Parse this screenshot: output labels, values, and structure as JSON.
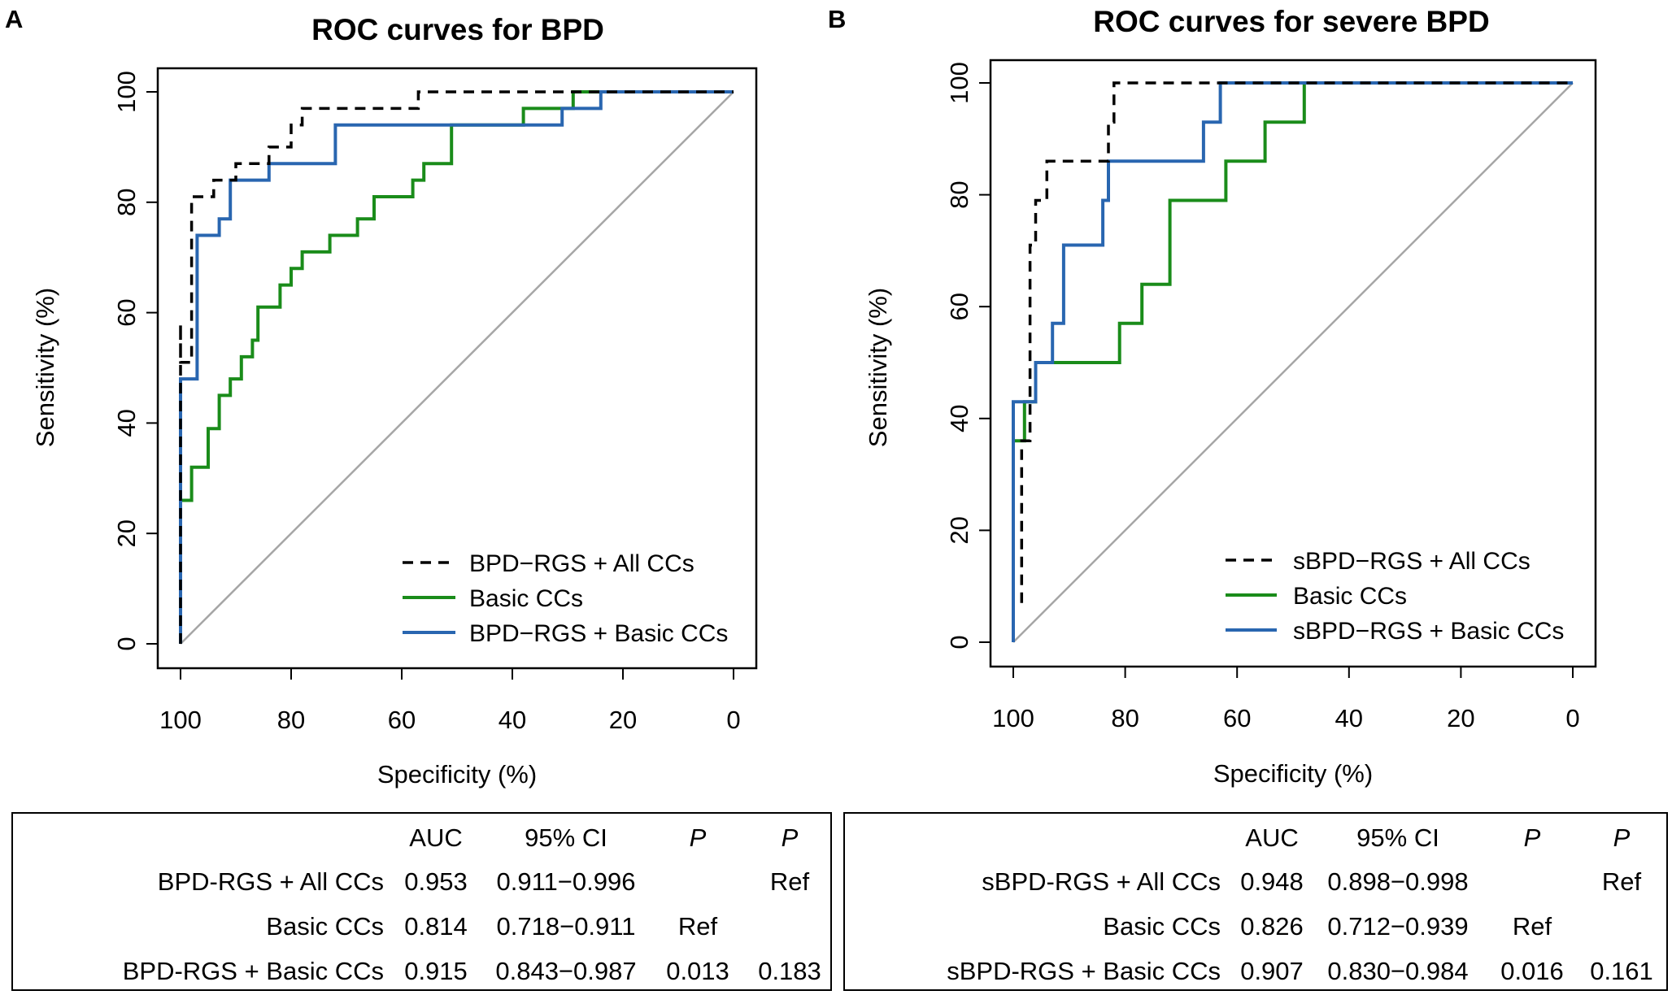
{
  "panels": [
    {
      "letter": "A",
      "chart_data": {
        "type": "line",
        "title": "ROC curves for BPD",
        "xlabel": "Specificity (%)",
        "ylabel": "Sensitivity (%)",
        "xlim": [
          100,
          0
        ],
        "ylim": [
          0,
          100
        ],
        "xticks": [
          "100",
          "80",
          "60",
          "40",
          "20",
          "0"
        ],
        "yticks": [
          "0",
          "20",
          "40",
          "60",
          "80",
          "100"
        ],
        "legend_position": "bottom-right",
        "series": [
          {
            "name": "BPD−RGS + All CCs",
            "color": "#000000",
            "style": "dashed",
            "points": [
              [
                100,
                0
              ],
              [
                100,
                51
              ],
              [
                100,
                58
              ],
              [
                100,
                51
              ],
              [
                98,
                51
              ],
              [
                98,
                75
              ],
              [
                98,
                81
              ],
              [
                94,
                81
              ],
              [
                94,
                84
              ],
              [
                90,
                84
              ],
              [
                90,
                87
              ],
              [
                84,
                87
              ],
              [
                84,
                90
              ],
              [
                80,
                90
              ],
              [
                80,
                94
              ],
              [
                78,
                94
              ],
              [
                78,
                97
              ],
              [
                57,
                97
              ],
              [
                57,
                100
              ],
              [
                0,
                100
              ]
            ]
          },
          {
            "name": "Basic CCs",
            "color": "#1a8c1a",
            "style": "solid",
            "points": [
              [
                100,
                0
              ],
              [
                100,
                26
              ],
              [
                98,
                26
              ],
              [
                98,
                32
              ],
              [
                95,
                32
              ],
              [
                95,
                39
              ],
              [
                93,
                39
              ],
              [
                93,
                45
              ],
              [
                91,
                45
              ],
              [
                91,
                48
              ],
              [
                89,
                48
              ],
              [
                89,
                52
              ],
              [
                87,
                52
              ],
              [
                87,
                55
              ],
              [
                86,
                55
              ],
              [
                86,
                61
              ],
              [
                82,
                61
              ],
              [
                82,
                65
              ],
              [
                80,
                65
              ],
              [
                80,
                68
              ],
              [
                78,
                68
              ],
              [
                78,
                71
              ],
              [
                73,
                71
              ],
              [
                73,
                74
              ],
              [
                68,
                74
              ],
              [
                68,
                77
              ],
              [
                65,
                77
              ],
              [
                65,
                81
              ],
              [
                58,
                81
              ],
              [
                58,
                84
              ],
              [
                56,
                84
              ],
              [
                56,
                87
              ],
              [
                51,
                87
              ],
              [
                51,
                94
              ],
              [
                38,
                94
              ],
              [
                38,
                97
              ],
              [
                29,
                97
              ],
              [
                29,
                100
              ],
              [
                0,
                100
              ]
            ]
          },
          {
            "name": "BPD−RGS + Basic CCs",
            "color": "#2966b0",
            "style": "solid",
            "points": [
              [
                100,
                0
              ],
              [
                100,
                48
              ],
              [
                97,
                48
              ],
              [
                97,
                74
              ],
              [
                93,
                74
              ],
              [
                93,
                77
              ],
              [
                91,
                77
              ],
              [
                91,
                84
              ],
              [
                84,
                84
              ],
              [
                84,
                87
              ],
              [
                72,
                87
              ],
              [
                72,
                94
              ],
              [
                31,
                94
              ],
              [
                31,
                97
              ],
              [
                24,
                97
              ],
              [
                24,
                100
              ],
              [
                0,
                100
              ]
            ]
          }
        ]
      },
      "table": {
        "headers": {
          "auc": "AUC",
          "ci": "95% CI",
          "p1": "P",
          "p2": "P"
        },
        "rows": [
          {
            "name": "BPD-RGS + All CCs",
            "auc": "0.953",
            "ci": "0.911−0.996",
            "p1": "",
            "p2": "Ref"
          },
          {
            "name": "Basic CCs",
            "auc": "0.814",
            "ci": "0.718−0.911",
            "p1": "Ref",
            "p2": ""
          },
          {
            "name": "BPD-RGS + Basic CCs",
            "auc": "0.915",
            "ci": "0.843−0.987",
            "p1": "0.013",
            "p2": "0.183"
          }
        ]
      }
    },
    {
      "letter": "B",
      "chart_data": {
        "type": "line",
        "title": "ROC curves for severe BPD",
        "xlabel": "Specificity (%)",
        "ylabel": "Sensitivity (%)",
        "xlim": [
          100,
          0
        ],
        "ylim": [
          0,
          100
        ],
        "xticks": [
          "100",
          "80",
          "60",
          "40",
          "20",
          "0"
        ],
        "yticks": [
          "0",
          "20",
          "40",
          "60",
          "80",
          "100"
        ],
        "legend_position": "bottom-right",
        "series": [
          {
            "name": "sBPD−RGS + All CCs",
            "color": "#000000",
            "style": "dashed",
            "points": [
              [
                98.5,
                7
              ],
              [
                98.5,
                36
              ],
              [
                97,
                36
              ],
              [
                97,
                50
              ],
              [
                97,
                71
              ],
              [
                96,
                71
              ],
              [
                96,
                79
              ],
              [
                94,
                79
              ],
              [
                94,
                86
              ],
              [
                83,
                86
              ],
              [
                83,
                93
              ],
              [
                82,
                93
              ],
              [
                82,
                100
              ],
              [
                62,
                100
              ],
              [
                0,
                100
              ]
            ]
          },
          {
            "name": "Basic CCs",
            "color": "#1a8c1a",
            "style": "solid",
            "points": [
              [
                100,
                0
              ],
              [
                100,
                36
              ],
              [
                98,
                36
              ],
              [
                98,
                43
              ],
              [
                96,
                43
              ],
              [
                96,
                50
              ],
              [
                81,
                50
              ],
              [
                81,
                57
              ],
              [
                77,
                57
              ],
              [
                77,
                64
              ],
              [
                72,
                64
              ],
              [
                72,
                79
              ],
              [
                62,
                79
              ],
              [
                62,
                86
              ],
              [
                55,
                86
              ],
              [
                55,
                93
              ],
              [
                48,
                93
              ],
              [
                48,
                100
              ],
              [
                0,
                100
              ]
            ]
          },
          {
            "name": "sBPD−RGS + Basic CCs",
            "color": "#2966b0",
            "style": "solid",
            "points": [
              [
                100,
                0
              ],
              [
                100,
                43
              ],
              [
                96,
                43
              ],
              [
                96,
                50
              ],
              [
                93,
                50
              ],
              [
                93,
                57
              ],
              [
                91,
                57
              ],
              [
                91,
                71
              ],
              [
                84,
                71
              ],
              [
                84,
                79
              ],
              [
                83,
                79
              ],
              [
                83,
                86
              ],
              [
                66,
                86
              ],
              [
                66,
                93
              ],
              [
                63,
                93
              ],
              [
                63,
                100
              ],
              [
                0,
                100
              ]
            ]
          }
        ]
      },
      "table": {
        "headers": {
          "auc": "AUC",
          "ci": "95% CI",
          "p1": "P",
          "p2": "P"
        },
        "rows": [
          {
            "name": "sBPD-RGS + All CCs",
            "auc": "0.948",
            "ci": "0.898−0.998",
            "p1": "",
            "p2": "Ref"
          },
          {
            "name": "Basic CCs",
            "auc": "0.826",
            "ci": "0.712−0.939",
            "p1": "Ref",
            "p2": ""
          },
          {
            "name": "sBPD-RGS + Basic CCs",
            "auc": "0.907",
            "ci": "0.830−0.984",
            "p1": "0.016",
            "p2": "0.161"
          }
        ]
      }
    }
  ]
}
